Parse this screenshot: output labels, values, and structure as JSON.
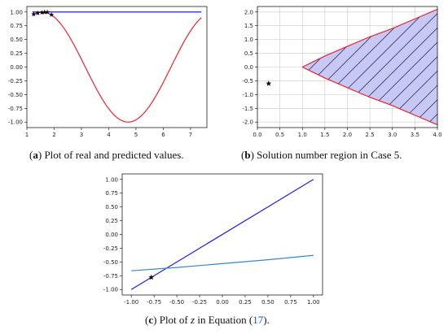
{
  "captions": {
    "a": {
      "label": "a",
      "text": " Plot of real and predicted values."
    },
    "b": {
      "label": "b",
      "text": " Solution number region in Case 5."
    },
    "c": {
      "label": "c",
      "text_before": " Plot of ",
      "var": "z",
      "text_mid": " in Equation (",
      "ref": "17",
      "text_after": ")."
    }
  },
  "colors": {
    "blue": "#1f1fe0",
    "red": "#e8252b",
    "lightblue": "#3a86c6",
    "fill": "#c8c8f5",
    "grid": "#c8c8c8"
  },
  "chart_data": [
    {
      "id": "a",
      "type": "line",
      "xlim": [
        1.0,
        7.6
      ],
      "ylim": [
        -1.1,
        1.1
      ],
      "xticks": [
        1,
        2,
        3,
        4,
        5,
        6,
        7
      ],
      "yticks": [
        -1.0,
        -0.75,
        -0.5,
        -0.25,
        0.0,
        0.25,
        0.5,
        0.75,
        1.0
      ],
      "ytick_labels": [
        "-1.00",
        "-0.75",
        "-0.50",
        "-0.25",
        "0.00",
        "0.25",
        "0.50",
        "0.75",
        "1.00"
      ],
      "grid": false,
      "series": [
        {
          "color": "blue",
          "x": [
            1.2,
            7.4
          ],
          "y": [
            1.0,
            1.0
          ]
        },
        {
          "color": "red",
          "function": "sin(x)",
          "x_range": [
            1.2,
            7.4
          ]
        }
      ],
      "markers": {
        "symbol": "star",
        "x": [
          1.25,
          1.4,
          1.55,
          1.65,
          1.75,
          1.9
        ],
        "y": [
          0.96,
          0.98,
          0.99,
          0.997,
          0.998,
          0.95
        ]
      }
    },
    {
      "id": "b",
      "type": "area",
      "xlim": [
        0.0,
        4.0
      ],
      "ylim": [
        -2.2,
        2.2
      ],
      "xticks": [
        0.0,
        0.5,
        1.0,
        1.5,
        2.0,
        2.5,
        3.0,
        3.5,
        4.0
      ],
      "xtick_labels": [
        "0.0",
        "0.5",
        "1.0",
        "1.5",
        "2.0",
        "2.5",
        "3.0",
        "3.5",
        "4.0"
      ],
      "yticks": [
        -2.0,
        -1.5,
        -1.0,
        -0.5,
        0.0,
        0.5,
        1.0,
        1.5,
        2.0
      ],
      "ytick_labels": [
        "-2.0",
        "-1.5",
        "-1.0",
        "-0.5",
        "0.0",
        "0.5",
        "1.0",
        "1.5",
        "2.0"
      ],
      "grid": true,
      "region": {
        "x_start": 1.0,
        "x_end": 4.0,
        "upper": "sqrt(x^3 - x^2)/(x)^0.5 approx",
        "upper_points": [
          [
            1.0,
            0.0
          ],
          [
            1.5,
            0.4
          ],
          [
            2.0,
            0.75
          ],
          [
            2.5,
            1.1
          ],
          [
            3.0,
            1.4
          ],
          [
            3.5,
            1.75
          ],
          [
            4.0,
            2.1
          ]
        ],
        "hatch": "diagonal",
        "fill": "fill",
        "edge": "red"
      },
      "markers": {
        "symbol": "star",
        "x": [
          0.25
        ],
        "y": [
          -0.6
        ]
      }
    },
    {
      "id": "c",
      "type": "line",
      "xlim": [
        -1.1,
        1.1
      ],
      "ylim": [
        -1.1,
        1.1
      ],
      "xticks": [
        -1.0,
        -0.75,
        -0.5,
        -0.25,
        0.0,
        0.25,
        0.5,
        0.75,
        1.0
      ],
      "xtick_labels": [
        "-1.00",
        "-0.75",
        "-0.50",
        "-0.25",
        "0.00",
        "0.25",
        "0.50",
        "0.75",
        "1.00"
      ],
      "yticks": [
        -1.0,
        -0.75,
        -0.5,
        -0.25,
        0.0,
        0.25,
        0.5,
        0.75,
        1.0
      ],
      "ytick_labels": [
        "-1.00",
        "-0.75",
        "-0.50",
        "-0.25",
        "0.00",
        "0.25",
        "0.50",
        "0.75",
        "1.00"
      ],
      "grid": false,
      "series": [
        {
          "color": "blue",
          "x": [
            -1.0,
            1.0
          ],
          "y": [
            -1.0,
            1.0
          ]
        },
        {
          "color": "lightblue",
          "x": [
            -1.0,
            -0.5,
            0.0,
            0.5,
            1.0
          ],
          "y": [
            -0.66,
            -0.6,
            -0.53,
            -0.46,
            -0.38
          ]
        }
      ],
      "markers": {
        "symbol": "star",
        "x": [
          -0.78
        ],
        "y": [
          -0.78
        ]
      }
    }
  ]
}
